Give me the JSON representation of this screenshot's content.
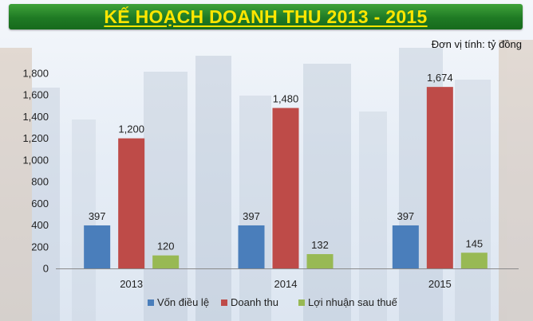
{
  "header": {
    "title": "KẾ HOẠCH DOANH THU 2013 - 2015",
    "unit_note": "Đơn vị tính: tỷ đồng"
  },
  "chart_data": {
    "type": "bar",
    "categories": [
      "2013",
      "2014",
      "2015"
    ],
    "series": [
      {
        "name": "Vốn điều lệ",
        "color": "#4a7ebb",
        "values": [
          397,
          397,
          397
        ]
      },
      {
        "name": "Doanh thu",
        "color": "#be4b48",
        "values": [
          1200,
          1480,
          1674
        ]
      },
      {
        "name": "Lợi nhuận sau thuế",
        "color": "#98b954",
        "values": [
          120,
          132,
          145
        ]
      }
    ],
    "data_labels": [
      [
        "397",
        "397",
        "397"
      ],
      [
        "1,200",
        "1,480",
        "1,674"
      ],
      [
        "120",
        "132",
        "145"
      ]
    ],
    "yticks": [
      "0",
      "200",
      "400",
      "600",
      "800",
      "1,000",
      "1,200",
      "1,400",
      "1,600",
      "1,800"
    ],
    "ylim": [
      0,
      1800
    ],
    "grid": false,
    "legend_position": "bottom"
  }
}
